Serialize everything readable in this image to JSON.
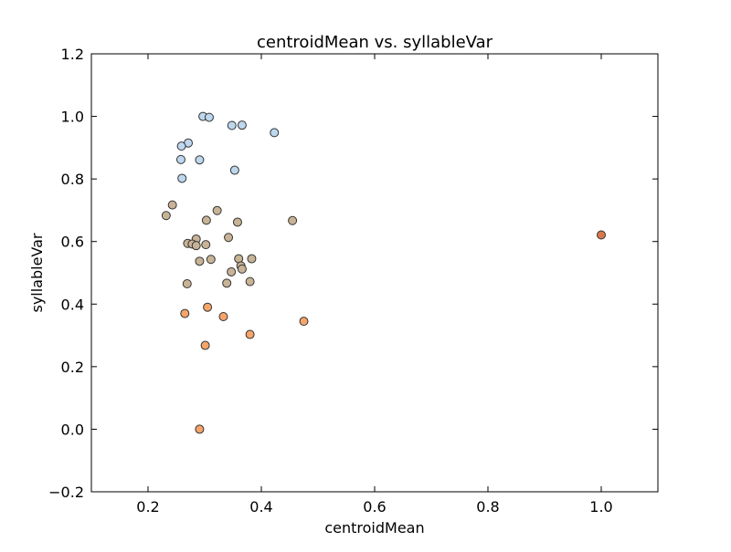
{
  "chart_data": {
    "type": "scatter",
    "title": "centroidMean vs. syllableVar",
    "xlabel": "centroidMean",
    "ylabel": "syllableVar",
    "xlim": [
      0.1,
      1.1
    ],
    "ylim": [
      -0.2,
      1.2
    ],
    "xticks": [
      0.2,
      0.4,
      0.6,
      0.8,
      1.0
    ],
    "xtick_labels": [
      "0.2",
      "0.4",
      "0.6",
      "0.8",
      "1.0"
    ],
    "yticks": [
      -0.2,
      0.0,
      0.2,
      0.4,
      0.6,
      0.8,
      1.0,
      1.2
    ],
    "ytick_labels": [
      "−0.2",
      "0.0",
      "0.2",
      "0.4",
      "0.6",
      "0.8",
      "1.0",
      "1.2"
    ],
    "grid": false,
    "legend": "none",
    "colors": {
      "blue": "#bdd7ee",
      "tan": "#c8b396",
      "orange": "#f5a46a",
      "dark_orange": "#d9784a",
      "marker_edge": "#333333",
      "axes": "#000000",
      "background": "#ffffff"
    },
    "series": [
      {
        "color_key": "blue",
        "points": [
          [
            0.297,
            1.0
          ],
          [
            0.308,
            0.997
          ],
          [
            0.348,
            0.971
          ],
          [
            0.366,
            0.972
          ],
          [
            0.423,
            0.948
          ],
          [
            0.271,
            0.915
          ],
          [
            0.259,
            0.905
          ],
          [
            0.258,
            0.862
          ],
          [
            0.291,
            0.861
          ],
          [
            0.353,
            0.828
          ],
          [
            0.26,
            0.802
          ]
        ]
      },
      {
        "color_key": "tan",
        "points": [
          [
            0.243,
            0.717
          ],
          [
            0.232,
            0.683
          ],
          [
            0.322,
            0.699
          ],
          [
            0.303,
            0.668
          ],
          [
            0.358,
            0.662
          ],
          [
            0.455,
            0.667
          ],
          [
            0.342,
            0.613
          ],
          [
            0.285,
            0.608
          ],
          [
            0.27,
            0.594
          ],
          [
            0.278,
            0.592
          ],
          [
            0.285,
            0.587
          ],
          [
            0.302,
            0.59
          ],
          [
            0.36,
            0.545
          ],
          [
            0.383,
            0.545
          ],
          [
            0.291,
            0.537
          ],
          [
            0.311,
            0.543
          ],
          [
            0.364,
            0.522
          ],
          [
            0.366,
            0.512
          ],
          [
            0.347,
            0.503
          ],
          [
            0.269,
            0.465
          ],
          [
            0.339,
            0.467
          ],
          [
            0.38,
            0.472
          ]
        ]
      },
      {
        "color_key": "orange",
        "points": [
          [
            0.265,
            0.37
          ],
          [
            0.305,
            0.39
          ],
          [
            0.333,
            0.36
          ],
          [
            0.475,
            0.345
          ],
          [
            0.38,
            0.303
          ],
          [
            0.301,
            0.268
          ],
          [
            0.291,
            0.0
          ]
        ]
      },
      {
        "color_key": "dark_orange",
        "points": [
          [
            1.0,
            0.621
          ]
        ]
      }
    ]
  }
}
